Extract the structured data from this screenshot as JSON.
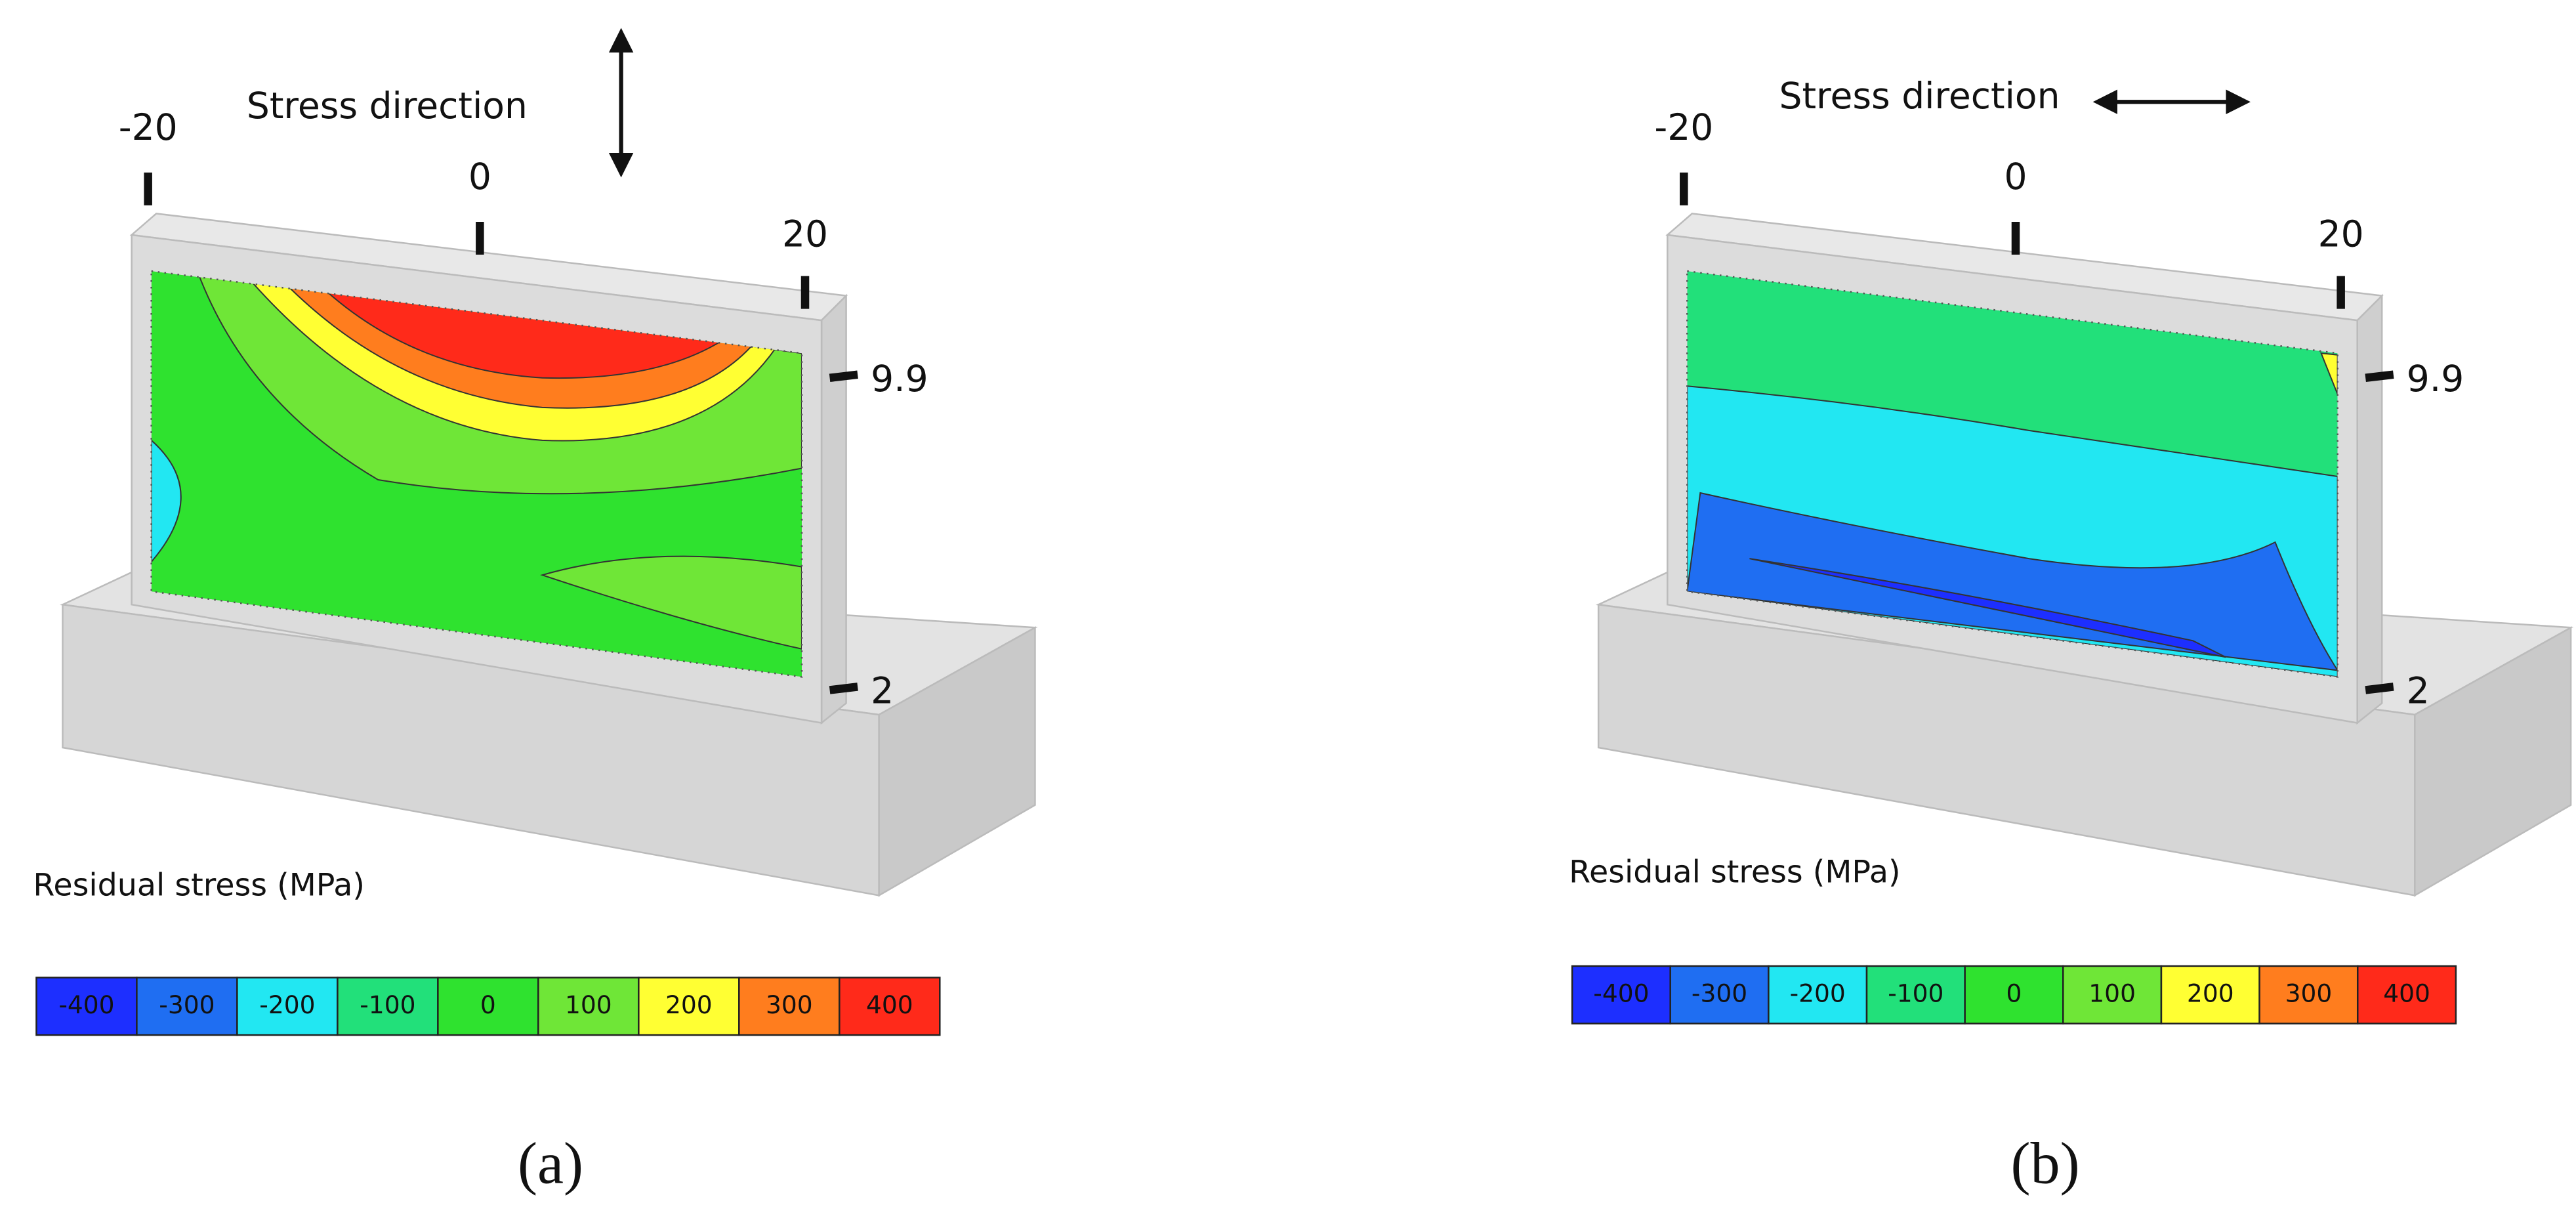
{
  "panels": [
    {
      "label": "(a)",
      "stress_direction": "Stress direction",
      "direction": "vertical",
      "x_ticks": [
        "-20",
        "0",
        "20"
      ],
      "z_ticks": [
        "9.9",
        "2"
      ],
      "legend_title": "Residual stress (MPa)",
      "legend": {
        "labels": [
          "-400",
          "-300",
          "-200",
          "-100",
          "0",
          "100",
          "200",
          "300",
          "400"
        ],
        "colors": [
          "#1d2fff",
          "#1f6ef2",
          "#22e7f2",
          "#22e07a",
          "#2fe22f",
          "#6fe637",
          "#ffff33",
          "#ff7d1e",
          "#ff2a1a"
        ]
      }
    },
    {
      "label": "(b)",
      "stress_direction": "Stress direction",
      "direction": "horizontal",
      "x_ticks": [
        "-20",
        "0",
        "20"
      ],
      "z_ticks": [
        "9.9",
        "2"
      ],
      "legend_title": "Residual stress (MPa)",
      "legend": {
        "labels": [
          "-400",
          "-300",
          "-200",
          "-100",
          "0",
          "100",
          "200",
          "300",
          "400"
        ],
        "colors": [
          "#1d2fff",
          "#1f6ef2",
          "#22e7f2",
          "#22e07a",
          "#2fe22f",
          "#6fe637",
          "#ffff33",
          "#ff7d1e",
          "#ff2a1a"
        ]
      }
    }
  ]
}
